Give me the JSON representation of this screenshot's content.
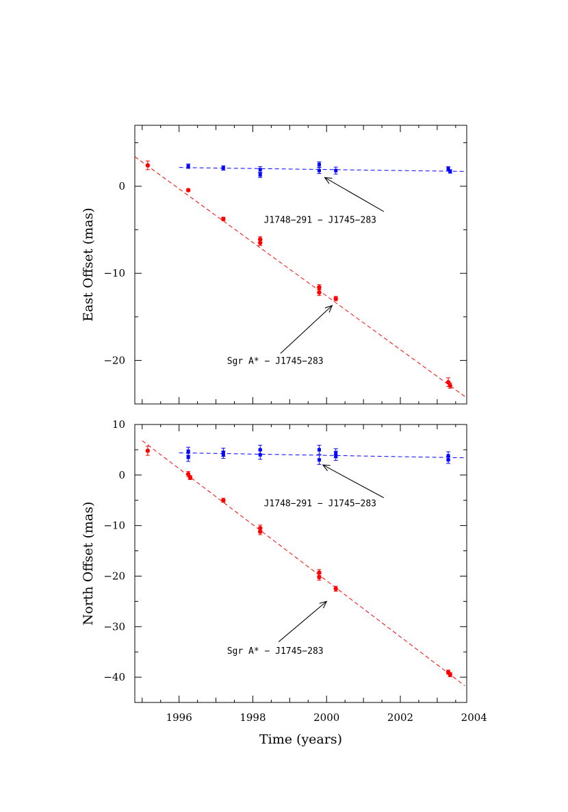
{
  "chart_data": [
    {
      "type": "scatter",
      "panel": "east",
      "xlabel": "",
      "ylabel": "East Offset (mas)",
      "xlim": [
        1994.8,
        2003.8
      ],
      "ylim": [
        -25.0,
        7.0
      ],
      "xticks": [
        1996,
        1998,
        2000,
        2002,
        2004
      ],
      "yticks": [
        0,
        -10,
        -20
      ],
      "ytick_labels": [
        "0",
        "−10",
        "−20"
      ],
      "grid": false,
      "series": [
        {
          "color": "#0000ff",
          "marker": "square",
          "points": [
            {
              "x": 1996.25,
              "y": 2.3,
              "err": 0.25
            },
            {
              "x": 1997.2,
              "y": 2.1,
              "err": 0.25
            },
            {
              "x": 1998.2,
              "y": 1.9,
              "err": 0.35
            },
            {
              "x": 1998.2,
              "y": 1.3,
              "err": 0.3
            },
            {
              "x": 1999.8,
              "y": 2.5,
              "err": 0.3
            },
            {
              "x": 1999.8,
              "y": 1.8,
              "err": 0.35
            },
            {
              "x": 2000.25,
              "y": 1.8,
              "err": 0.4
            },
            {
              "x": 2003.3,
              "y": 2.0,
              "err": 0.25
            },
            {
              "x": 2003.35,
              "y": 1.7,
              "err": 0.2
            }
          ],
          "fit": {
            "x": [
              1996.0,
              2003.8
            ],
            "y": [
              2.15,
              1.7
            ]
          }
        },
        {
          "color": "#ff0000",
          "marker": "circle",
          "points": [
            {
              "x": 1995.15,
              "y": 2.4,
              "err": 0.5
            },
            {
              "x": 1996.25,
              "y": -0.45,
              "err": 0.15
            },
            {
              "x": 1997.2,
              "y": -3.75,
              "err": 0.2
            },
            {
              "x": 1998.2,
              "y": -6.1,
              "err": 0.3
            },
            {
              "x": 1998.2,
              "y": -6.5,
              "err": 0.3
            },
            {
              "x": 1999.8,
              "y": -11.6,
              "err": 0.3
            },
            {
              "x": 1999.8,
              "y": -12.2,
              "err": 0.35
            },
            {
              "x": 2000.25,
              "y": -12.9,
              "err": 0.25
            },
            {
              "x": 2003.3,
              "y": -22.5,
              "err": 0.5
            },
            {
              "x": 2003.35,
              "y": -22.9,
              "err": 0.3
            }
          ],
          "fit": {
            "x": [
              1994.8,
              2003.8
            ],
            "y": [
              3.4,
              -24.3
            ]
          }
        }
      ],
      "annotations": [
        {
          "text": "J1748−291 − J1745−283",
          "text_at": [
            1998.3,
            -4.2
          ],
          "arrow_from": [
            2001.55,
            -2.9
          ],
          "arrow_to": [
            1999.95,
            1.0
          ]
        },
        {
          "text": "Sgr A* − J1745−283",
          "text_at": [
            1997.3,
            -20.4
          ],
          "arrow_from": [
            1998.75,
            -19.2
          ],
          "arrow_to": [
            2000.15,
            -13.7
          ]
        }
      ]
    },
    {
      "type": "scatter",
      "panel": "north",
      "xlabel": "Time (years)",
      "ylabel": "North Offset (mas)",
      "xlim": [
        1994.8,
        2003.8
      ],
      "ylim": [
        -45.0,
        10.0
      ],
      "xticks": [
        1996,
        1998,
        2000,
        2002,
        2004
      ],
      "yticks": [
        10,
        0,
        -10,
        -20,
        -30,
        -40
      ],
      "ytick_labels": [
        "10",
        "0",
        "−10",
        "−20",
        "−30",
        "−40"
      ],
      "grid": false,
      "series": [
        {
          "color": "#0000ff",
          "marker": "square",
          "points": [
            {
              "x": 1996.25,
              "y": 4.7,
              "err": 0.8
            },
            {
              "x": 1996.25,
              "y": 3.5,
              "err": 0.8
            },
            {
              "x": 1997.2,
              "y": 4.5,
              "err": 0.8
            },
            {
              "x": 1997.2,
              "y": 4.0,
              "err": 0.7
            },
            {
              "x": 1998.2,
              "y": 5.0,
              "err": 0.9
            },
            {
              "x": 1998.2,
              "y": 4.0,
              "err": 0.9
            },
            {
              "x": 1999.8,
              "y": 5.0,
              "err": 0.9
            },
            {
              "x": 1999.8,
              "y": 3.0,
              "err": 0.9
            },
            {
              "x": 2000.25,
              "y": 4.3,
              "err": 0.9
            },
            {
              "x": 2000.25,
              "y": 3.8,
              "err": 0.9
            },
            {
              "x": 2003.3,
              "y": 3.8,
              "err": 0.8
            },
            {
              "x": 2003.3,
              "y": 3.0,
              "err": 0.7
            }
          ],
          "fit": {
            "x": [
              1996.0,
              2003.8
            ],
            "y": [
              4.4,
              3.4
            ]
          }
        },
        {
          "color": "#ff0000",
          "marker": "circle",
          "points": [
            {
              "x": 1995.15,
              "y": 4.8,
              "err": 0.9
            },
            {
              "x": 1996.25,
              "y": 0.2,
              "err": 0.5
            },
            {
              "x": 1996.3,
              "y": -0.5,
              "err": 0.4
            },
            {
              "x": 1997.2,
              "y": -5.0,
              "err": 0.4
            },
            {
              "x": 1998.2,
              "y": -10.5,
              "err": 0.6
            },
            {
              "x": 1998.2,
              "y": -11.2,
              "err": 0.6
            },
            {
              "x": 1999.8,
              "y": -19.3,
              "err": 0.6
            },
            {
              "x": 1999.8,
              "y": -20.2,
              "err": 0.6
            },
            {
              "x": 2000.25,
              "y": -22.5,
              "err": 0.5
            },
            {
              "x": 2003.3,
              "y": -39.0,
              "err": 0.4
            },
            {
              "x": 2003.35,
              "y": -39.5,
              "err": 0.4
            }
          ],
          "fit": {
            "x": [
              1995.0,
              2003.75
            ],
            "y": [
              6.8,
              -41.7
            ]
          }
        }
      ],
      "annotations": [
        {
          "text": "J1748−291 − J1745−283",
          "text_at": [
            1998.3,
            -6.2
          ],
          "arrow_from": [
            2001.55,
            -4.5
          ],
          "arrow_to": [
            1999.9,
            2.0
          ]
        },
        {
          "text": "Sgr A* − J1745−283",
          "text_at": [
            1997.3,
            -35.4
          ],
          "arrow_from": [
            1998.7,
            -33.0
          ],
          "arrow_to": [
            2000.0,
            -25.0
          ]
        }
      ]
    }
  ]
}
